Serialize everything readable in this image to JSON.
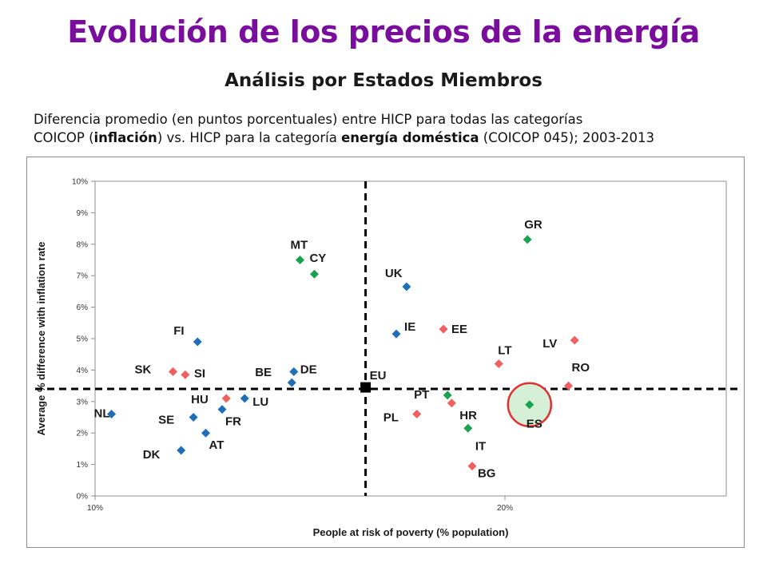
{
  "header": {
    "title": "Evolución de los precios de la energía",
    "subtitle": "Análisis por Estados Miembros"
  },
  "description": {
    "line1": "Diferencia promedio (en puntos porcentuales) entre HICP  para todas las categorías",
    "line2_a": "COICOP (",
    "line2_b": "inflación",
    "line2_c": ") vs. HICP para la categoría ",
    "line2_d": "energía doméstica",
    "line2_e": " (COICOP 045);  2003-2013"
  },
  "colors": {
    "title": "#7a0e9c",
    "blue": "#1f6fb8",
    "red": "#f06060",
    "green": "#1aa152",
    "eu": "#000000",
    "highlight_ring": "#e03030",
    "highlight_fill": "#d6f0d8"
  },
  "chart_data": {
    "type": "scatter",
    "xlabel": "People at risk of poverty (% population)",
    "ylabel": "Average % difference with inflation rate",
    "xlim": [
      10,
      25.4
    ],
    "ylim": [
      0,
      10
    ],
    "xticks": [
      "10%",
      "20%"
    ],
    "xtick_values": [
      10,
      20
    ],
    "yticks": [
      "0%",
      "1%",
      "2%",
      "3%",
      "4%",
      "5%",
      "6%",
      "7%",
      "8%",
      "9%",
      "10%"
    ],
    "ytick_values": [
      0,
      1,
      2,
      3,
      4,
      5,
      6,
      7,
      8,
      9,
      10
    ],
    "reference_lines": {
      "x": 16.6,
      "y": 3.4
    },
    "highlight": "ES",
    "points": [
      {
        "label": "NL",
        "x": 10.4,
        "y": 2.6,
        "group": "blue"
      },
      {
        "label": "DK",
        "x": 12.1,
        "y": 1.45,
        "group": "blue"
      },
      {
        "label": "SE",
        "x": 12.4,
        "y": 2.5,
        "group": "blue"
      },
      {
        "label": "AT",
        "x": 12.7,
        "y": 2.0,
        "group": "blue"
      },
      {
        "label": "FI",
        "x": 12.5,
        "y": 4.9,
        "group": "blue"
      },
      {
        "label": "FR",
        "x": 13.1,
        "y": 2.75,
        "group": "blue"
      },
      {
        "label": "LU",
        "x": 13.65,
        "y": 3.1,
        "group": "blue"
      },
      {
        "label": "BE",
        "x": 14.8,
        "y": 3.6,
        "group": "blue"
      },
      {
        "label": "DE",
        "x": 14.85,
        "y": 3.95,
        "group": "blue"
      },
      {
        "label": "UK",
        "x": 17.6,
        "y": 6.65,
        "group": "blue"
      },
      {
        "label": "IE",
        "x": 17.35,
        "y": 5.15,
        "group": "blue"
      },
      {
        "label": "SK",
        "x": 11.9,
        "y": 3.95,
        "group": "red"
      },
      {
        "label": "SI",
        "x": 12.2,
        "y": 3.85,
        "group": "red"
      },
      {
        "label": "HU",
        "x": 13.2,
        "y": 3.1,
        "group": "red"
      },
      {
        "label": "EE",
        "x": 18.5,
        "y": 5.3,
        "group": "red"
      },
      {
        "label": "PL",
        "x": 17.85,
        "y": 2.6,
        "group": "red"
      },
      {
        "label": "HR",
        "x": 18.7,
        "y": 2.95,
        "group": "red"
      },
      {
        "label": "BG",
        "x": 19.2,
        "y": 0.95,
        "group": "red"
      },
      {
        "label": "LT",
        "x": 19.85,
        "y": 4.2,
        "group": "red"
      },
      {
        "label": "LV",
        "x": 21.7,
        "y": 4.95,
        "group": "red"
      },
      {
        "label": "RO",
        "x": 21.55,
        "y": 3.5,
        "group": "red"
      },
      {
        "label": "MT",
        "x": 15.0,
        "y": 7.5,
        "group": "green"
      },
      {
        "label": "CY",
        "x": 15.35,
        "y": 7.05,
        "group": "green"
      },
      {
        "label": "PT",
        "x": 18.6,
        "y": 3.2,
        "group": "green"
      },
      {
        "label": "IT",
        "x": 19.1,
        "y": 2.15,
        "group": "green"
      },
      {
        "label": "GR",
        "x": 20.55,
        "y": 8.15,
        "group": "green"
      },
      {
        "label": "ES",
        "x": 20.6,
        "y": 2.9,
        "group": "green"
      },
      {
        "label": "EU",
        "x": 16.6,
        "y": 3.45,
        "group": "eu"
      }
    ]
  }
}
